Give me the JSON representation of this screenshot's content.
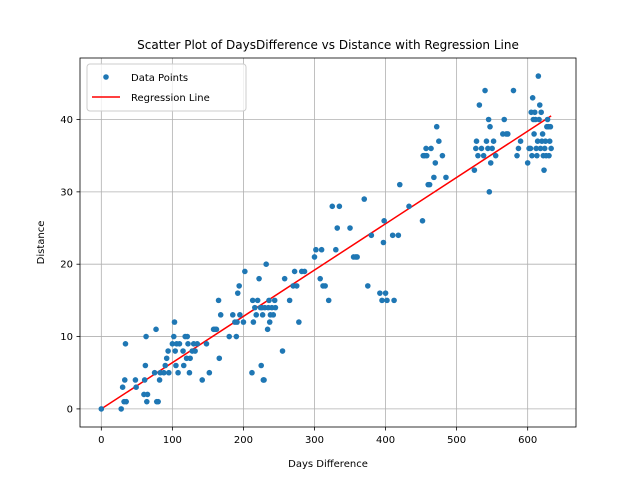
{
  "chart_data": {
    "type": "scatter",
    "title": "Scatter Plot of DaysDifference vs Distance with Regression Line",
    "xlabel": "Days Difference",
    "ylabel": "Distance",
    "xlim": [
      -30,
      668
    ],
    "ylim": [
      -2.5,
      48.5
    ],
    "xticks": [
      0,
      100,
      200,
      300,
      400,
      500,
      600
    ],
    "yticks": [
      0,
      10,
      20,
      30,
      40
    ],
    "grid": true,
    "legend_position": "top-left",
    "colors": {
      "points": "#1f77b4",
      "line": "#ff0000",
      "grid": "#b0b0b0"
    },
    "series": [
      {
        "name": "Data Points",
        "type": "scatter",
        "points": [
          [
            0,
            0
          ],
          [
            28,
            0
          ],
          [
            30,
            3
          ],
          [
            32,
            1
          ],
          [
            33,
            4
          ],
          [
            34,
            9
          ],
          [
            35,
            1
          ],
          [
            48,
            4
          ],
          [
            49,
            3
          ],
          [
            60,
            2
          ],
          [
            61,
            4
          ],
          [
            62,
            6
          ],
          [
            63,
            10
          ],
          [
            64,
            1
          ],
          [
            65,
            2
          ],
          [
            75,
            5
          ],
          [
            77,
            11
          ],
          [
            78,
            1
          ],
          [
            80,
            1
          ],
          [
            82,
            4
          ],
          [
            83,
            5
          ],
          [
            88,
            5
          ],
          [
            90,
            6
          ],
          [
            92,
            7
          ],
          [
            94,
            8
          ],
          [
            95,
            5
          ],
          [
            100,
            9
          ],
          [
            102,
            10
          ],
          [
            103,
            12
          ],
          [
            104,
            8
          ],
          [
            105,
            6
          ],
          [
            106,
            9
          ],
          [
            108,
            5
          ],
          [
            110,
            9
          ],
          [
            115,
            8
          ],
          [
            116,
            6
          ],
          [
            118,
            10
          ],
          [
            120,
            7
          ],
          [
            121,
            10
          ],
          [
            122,
            9
          ],
          [
            124,
            5
          ],
          [
            125,
            7
          ],
          [
            128,
            8
          ],
          [
            130,
            9
          ],
          [
            132,
            8
          ],
          [
            135,
            9
          ],
          [
            142,
            4
          ],
          [
            148,
            9
          ],
          [
            152,
            5
          ],
          [
            158,
            11
          ],
          [
            160,
            11
          ],
          [
            162,
            11
          ],
          [
            165,
            15
          ],
          [
            166,
            7
          ],
          [
            168,
            13
          ],
          [
            180,
            10
          ],
          [
            185,
            13
          ],
          [
            188,
            12
          ],
          [
            190,
            10
          ],
          [
            191,
            12
          ],
          [
            192,
            16
          ],
          [
            194,
            17
          ],
          [
            195,
            13
          ],
          [
            200,
            12
          ],
          [
            202,
            19
          ],
          [
            212,
            5
          ],
          [
            213,
            15
          ],
          [
            214,
            12
          ],
          [
            216,
            14
          ],
          [
            218,
            13
          ],
          [
            220,
            15
          ],
          [
            222,
            18
          ],
          [
            224,
            14
          ],
          [
            225,
            6
          ],
          [
            226,
            14
          ],
          [
            227,
            13
          ],
          [
            228,
            4
          ],
          [
            229,
            4
          ],
          [
            230,
            14
          ],
          [
            232,
            20
          ],
          [
            234,
            11
          ],
          [
            235,
            14
          ],
          [
            236,
            15
          ],
          [
            237,
            12
          ],
          [
            238,
            13
          ],
          [
            240,
            14
          ],
          [
            242,
            13
          ],
          [
            244,
            15
          ],
          [
            245,
            14
          ],
          [
            255,
            8
          ],
          [
            258,
            18
          ],
          [
            265,
            15
          ],
          [
            270,
            17
          ],
          [
            272,
            19
          ],
          [
            275,
            17
          ],
          [
            278,
            12
          ],
          [
            282,
            19
          ],
          [
            286,
            19
          ],
          [
            300,
            21
          ],
          [
            302,
            22
          ],
          [
            308,
            18
          ],
          [
            310,
            22
          ],
          [
            312,
            17
          ],
          [
            315,
            17
          ],
          [
            320,
            15
          ],
          [
            325,
            28
          ],
          [
            330,
            22
          ],
          [
            332,
            25
          ],
          [
            335,
            28
          ],
          [
            350,
            25
          ],
          [
            355,
            21
          ],
          [
            358,
            21
          ],
          [
            360,
            21
          ],
          [
            370,
            29
          ],
          [
            375,
            17
          ],
          [
            380,
            24
          ],
          [
            392,
            16
          ],
          [
            395,
            15
          ],
          [
            397,
            23
          ],
          [
            398,
            26
          ],
          [
            400,
            16
          ],
          [
            402,
            15
          ],
          [
            410,
            24
          ],
          [
            412,
            15
          ],
          [
            418,
            24
          ],
          [
            420,
            31
          ],
          [
            433,
            28
          ],
          [
            452,
            26
          ],
          [
            453,
            35
          ],
          [
            455,
            35
          ],
          [
            457,
            36
          ],
          [
            458,
            35
          ],
          [
            460,
            31
          ],
          [
            462,
            31
          ],
          [
            464,
            36
          ],
          [
            468,
            32
          ],
          [
            470,
            34
          ],
          [
            472,
            39
          ],
          [
            475,
            37
          ],
          [
            480,
            35
          ],
          [
            485,
            32
          ],
          [
            525,
            33
          ],
          [
            527,
            36
          ],
          [
            528,
            37
          ],
          [
            530,
            35
          ],
          [
            532,
            42
          ],
          [
            535,
            36
          ],
          [
            538,
            35
          ],
          [
            540,
            44
          ],
          [
            542,
            37
          ],
          [
            544,
            36
          ],
          [
            545,
            40
          ],
          [
            546,
            30
          ],
          [
            547,
            39
          ],
          [
            548,
            34
          ],
          [
            550,
            36
          ],
          [
            552,
            37
          ],
          [
            555,
            35
          ],
          [
            565,
            38
          ],
          [
            567,
            40
          ],
          [
            570,
            38
          ],
          [
            572,
            38
          ],
          [
            580,
            44
          ],
          [
            585,
            35
          ],
          [
            587,
            36
          ],
          [
            590,
            37
          ],
          [
            600,
            34
          ],
          [
            602,
            36
          ],
          [
            604,
            36
          ],
          [
            605,
            41
          ],
          [
            606,
            35
          ],
          [
            607,
            43
          ],
          [
            608,
            40
          ],
          [
            609,
            38
          ],
          [
            610,
            41
          ],
          [
            611,
            40
          ],
          [
            612,
            36
          ],
          [
            613,
            35
          ],
          [
            614,
            37
          ],
          [
            615,
            46
          ],
          [
            616,
            40
          ],
          [
            617,
            42
          ],
          [
            618,
            36
          ],
          [
            619,
            41
          ],
          [
            620,
            37
          ],
          [
            621,
            38
          ],
          [
            622,
            35
          ],
          [
            623,
            33
          ],
          [
            624,
            36
          ],
          [
            625,
            37
          ],
          [
            626,
            35
          ],
          [
            627,
            39
          ],
          [
            628,
            40
          ],
          [
            629,
            39
          ],
          [
            630,
            35
          ],
          [
            631,
            37
          ],
          [
            632,
            39
          ],
          [
            633,
            36
          ]
        ]
      },
      {
        "name": "Regression Line",
        "type": "line",
        "x": [
          0,
          633
        ],
        "y": [
          0,
          40.5
        ]
      }
    ]
  }
}
